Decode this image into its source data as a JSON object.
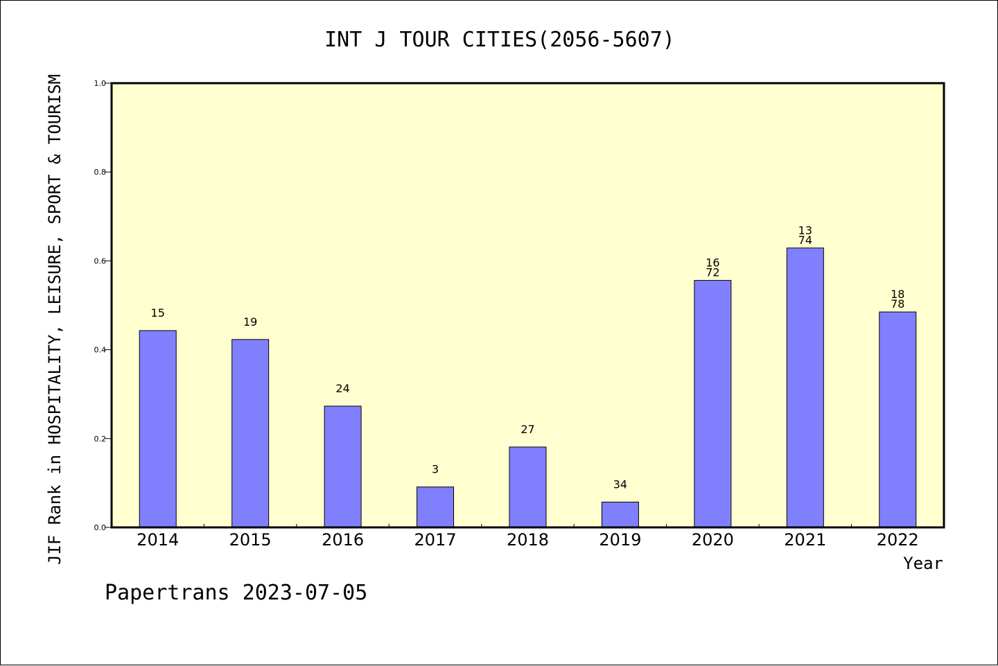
{
  "chart_data": {
    "type": "bar",
    "title": "INT J TOUR CITIES(2056-5607)",
    "ylabel": "JIF Rank in HOSPITALITY, LEISURE, SPORT & TOURISM",
    "xlabel": "Year",
    "footer": "Papertrans 2023-07-05",
    "ylim": [
      0,
      1.0
    ],
    "yticks": [
      "0.0",
      "0.2",
      "0.4",
      "0.6",
      "0.8",
      "1.0"
    ],
    "categories": [
      "2014",
      "2015",
      "2016",
      "2017",
      "2018",
      "2019",
      "2020",
      "2021",
      "2022"
    ],
    "values": [
      0.443,
      0.423,
      0.273,
      0.091,
      0.181,
      0.057,
      0.556,
      0.629,
      0.485
    ],
    "labels": [
      [
        "15"
      ],
      [
        "19"
      ],
      [
        "24"
      ],
      [
        "3"
      ],
      [
        "27"
      ],
      [
        "34"
      ],
      [
        "16",
        "72"
      ],
      [
        "13",
        "74"
      ],
      [
        "18",
        "78"
      ]
    ],
    "grid": false,
    "colors": {
      "bar": "#8080ff",
      "plot_bg": "#ffffd0",
      "axis": "#000000"
    }
  }
}
